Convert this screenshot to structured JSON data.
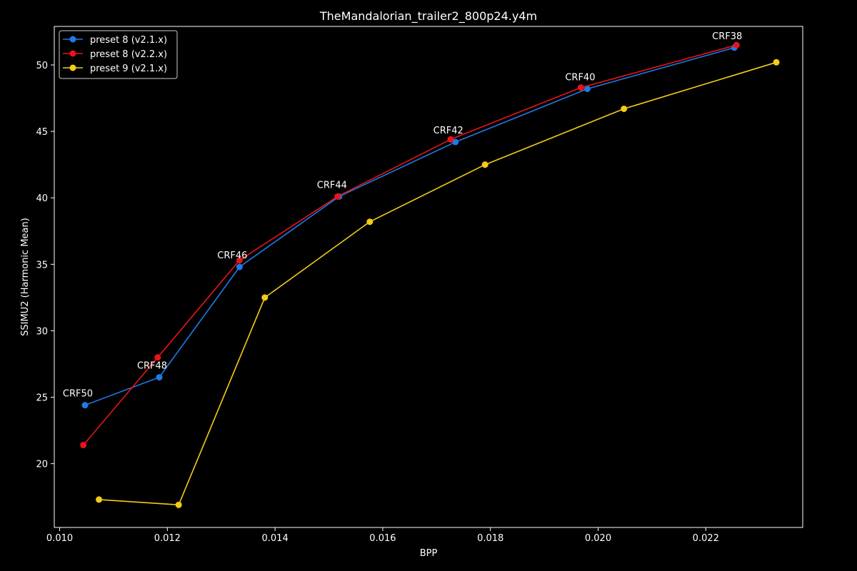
{
  "chart_data": {
    "type": "line",
    "title": "TheMandalorian_trailer2_800p24.y4m",
    "xlabel": "BPP",
    "ylabel": "SSIMU2 (Harmonic Mean)",
    "xlim": [
      0.0099,
      0.0238
    ],
    "ylim": [
      15.2,
      52.9
    ],
    "x_ticks": [
      0.01,
      0.012,
      0.014,
      0.016,
      0.018,
      0.02,
      0.022
    ],
    "x_tick_labels": [
      "0.010",
      "0.012",
      "0.014",
      "0.016",
      "0.018",
      "0.020",
      "0.022"
    ],
    "y_ticks": [
      20,
      25,
      30,
      35,
      40,
      45,
      50
    ],
    "y_tick_labels": [
      "20",
      "25",
      "30",
      "35",
      "40",
      "45",
      "50"
    ],
    "grid": false,
    "legend_position": "top-left",
    "series": [
      {
        "name": "preset 8 (v2.1.x)",
        "color": "#1f7ae8",
        "points": [
          {
            "x": 0.01047,
            "y": 24.4
          },
          {
            "x": 0.01185,
            "y": 26.5
          },
          {
            "x": 0.01334,
            "y": 34.8
          },
          {
            "x": 0.01519,
            "y": 40.1
          },
          {
            "x": 0.01735,
            "y": 44.2
          },
          {
            "x": 0.0198,
            "y": 48.2
          },
          {
            "x": 0.02253,
            "y": 51.3
          }
        ]
      },
      {
        "name": "preset 8 (v2.2.x)",
        "color": "#e8141a",
        "points": [
          {
            "x": 0.01044,
            "y": 21.4
          },
          {
            "x": 0.01182,
            "y": 28.0
          },
          {
            "x": 0.01334,
            "y": 35.3
          },
          {
            "x": 0.01516,
            "y": 40.1
          },
          {
            "x": 0.01726,
            "y": 44.4
          },
          {
            "x": 0.01968,
            "y": 48.3
          },
          {
            "x": 0.02257,
            "y": 51.5
          }
        ]
      },
      {
        "name": "preset 9 (v2.1.x)",
        "color": "#f5cc16",
        "points": [
          {
            "x": 0.01073,
            "y": 17.3
          },
          {
            "x": 0.01221,
            "y": 16.9
          },
          {
            "x": 0.01381,
            "y": 32.5
          },
          {
            "x": 0.01576,
            "y": 38.2
          },
          {
            "x": 0.0179,
            "y": 42.5
          },
          {
            "x": 0.02048,
            "y": 46.7
          },
          {
            "x": 0.02331,
            "y": 50.2
          }
        ]
      }
    ],
    "annotations": [
      {
        "text": "CRF50",
        "x": 0.01047,
        "y": 24.4
      },
      {
        "text": "CRF48",
        "x": 0.01185,
        "y": 26.5
      },
      {
        "text": "CRF46",
        "x": 0.01334,
        "y": 34.8
      },
      {
        "text": "CRF44",
        "x": 0.01519,
        "y": 40.1
      },
      {
        "text": "CRF42",
        "x": 0.01735,
        "y": 44.2
      },
      {
        "text": "CRF40",
        "x": 0.0198,
        "y": 48.2
      },
      {
        "text": "CRF38",
        "x": 0.02253,
        "y": 51.3
      }
    ]
  }
}
